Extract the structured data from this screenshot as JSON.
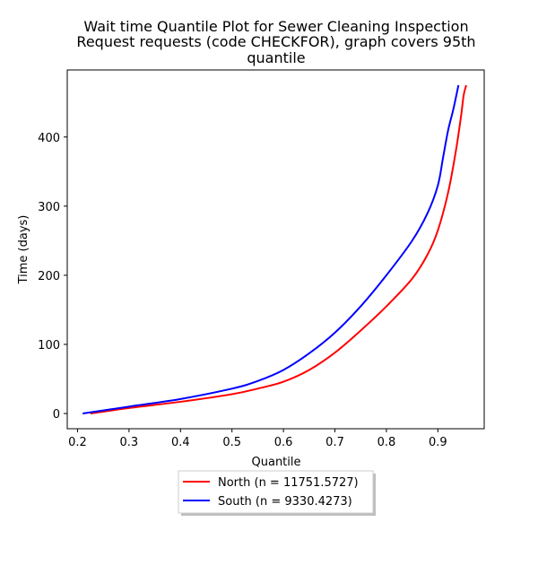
{
  "chart_data": {
    "type": "line",
    "title_lines": [
      "Wait time Quantile Plot for Sewer Cleaning Inspection",
      "Request  requests (code CHECKFOR), graph covers 95th",
      "quantile"
    ],
    "xlabel": "Quantile",
    "ylabel": "Time (days)",
    "xlim": [
      0.18,
      0.99
    ],
    "ylim": [
      -22,
      497
    ],
    "x_ticks": [
      0.2,
      0.3,
      0.4,
      0.5,
      0.6,
      0.7,
      0.8,
      0.9
    ],
    "x_tick_labels": [
      "0.2",
      "0.3",
      "0.4",
      "0.5",
      "0.6",
      "0.7",
      "0.8",
      "0.9"
    ],
    "y_ticks": [
      0,
      100,
      200,
      300,
      400
    ],
    "y_tick_labels": [
      "0",
      "100",
      "200",
      "300",
      "400"
    ],
    "legend_position": "below",
    "series": [
      {
        "name": "North (n = 11751.5727)",
        "color": "#ff0000",
        "x": [
          0.225,
          0.3,
          0.4,
          0.5,
          0.55,
          0.6,
          0.65,
          0.7,
          0.75,
          0.8,
          0.85,
          0.88,
          0.9,
          0.92,
          0.935,
          0.945,
          0.95,
          0.955
        ],
        "y": [
          0,
          8,
          17,
          28,
          36,
          46,
          63,
          88,
          120,
          155,
          195,
          230,
          265,
          320,
          380,
          430,
          460,
          475
        ]
      },
      {
        "name": "South (n = 9330.4273)",
        "color": "#0000ff",
        "x": [
          0.21,
          0.3,
          0.4,
          0.5,
          0.55,
          0.6,
          0.65,
          0.7,
          0.75,
          0.8,
          0.85,
          0.88,
          0.9,
          0.91,
          0.92,
          0.93,
          0.94
        ],
        "y": [
          0,
          10,
          21,
          36,
          47,
          63,
          87,
          117,
          155,
          200,
          250,
          290,
          330,
          370,
          410,
          440,
          475
        ]
      }
    ]
  }
}
